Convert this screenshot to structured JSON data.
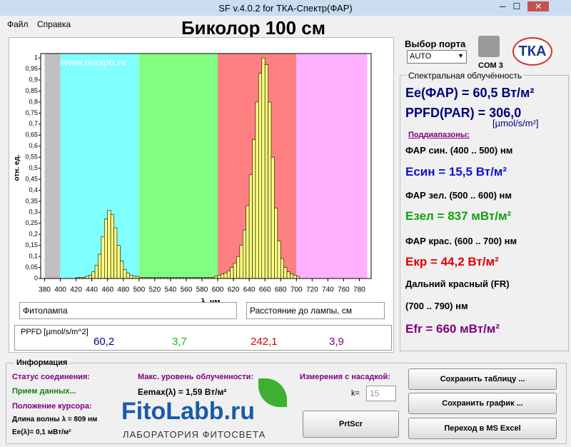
{
  "window": {
    "title": "SF v.4.0.2 for ТКА-Спектр(ФАР)",
    "menu": [
      "Файл",
      "Справка"
    ]
  },
  "header": "Биколор 100 см",
  "chart_data": {
    "type": "histogram",
    "watermark": "www.tkaspb.ru",
    "xlabel": "λ, нм",
    "ylabel": "отн. ед.",
    "bins": [
      420,
      424,
      428,
      432,
      436,
      440,
      444,
      448,
      452,
      456,
      460,
      464,
      468,
      472,
      476,
      480,
      484,
      488,
      492,
      496,
      500,
      504,
      508,
      512,
      516,
      520,
      524,
      528,
      532,
      536,
      540,
      544,
      548,
      552,
      556,
      560,
      564,
      568,
      572,
      576,
      580,
      584,
      588,
      592,
      596,
      600,
      604,
      608,
      612,
      616,
      620,
      624,
      628,
      632,
      636,
      640,
      644,
      648,
      652,
      656,
      660,
      664,
      668,
      672,
      676,
      680,
      684,
      688,
      692,
      696,
      700,
      704
    ],
    "values": [
      0.005,
      0.005,
      0.005,
      0.01,
      0.015,
      0.03,
      0.06,
      0.11,
      0.19,
      0.27,
      0.31,
      0.29,
      0.23,
      0.15,
      0.08,
      0.04,
      0.025,
      0.015,
      0.01,
      0.01,
      0.005,
      0.005,
      0.005,
      0.005,
      0.005,
      0.005,
      0.005,
      0.005,
      0.005,
      0.005,
      0.005,
      0.005,
      0.005,
      0.005,
      0.005,
      0.005,
      0.005,
      0.005,
      0.005,
      0.005,
      0.005,
      0.005,
      0.005,
      0.005,
      0.01,
      0.015,
      0.02,
      0.025,
      0.035,
      0.05,
      0.07,
      0.1,
      0.15,
      0.22,
      0.33,
      0.47,
      0.63,
      0.8,
      0.93,
      1.0,
      0.97,
      0.8,
      0.55,
      0.32,
      0.17,
      0.09,
      0.05,
      0.03,
      0.02,
      0.015,
      0.01
    ],
    "color": "#ffff80",
    "edgecolor": "#000000",
    "bands": [
      {
        "from": 380,
        "to": 400,
        "color": "#c0c0c0"
      },
      {
        "from": 400,
        "to": 500,
        "color": "#80ffff"
      },
      {
        "from": 500,
        "to": 600,
        "color": "#80ff80"
      },
      {
        "from": 600,
        "to": 700,
        "color": "#ff8080"
      },
      {
        "from": 700,
        "to": 790,
        "color": "#ffb0ff"
      }
    ],
    "xlim": [
      375,
      795
    ],
    "ylim": [
      0,
      1.02
    ],
    "xticks": [
      380,
      400,
      420,
      440,
      460,
      480,
      500,
      520,
      540,
      560,
      580,
      600,
      620,
      640,
      660,
      680,
      700,
      720,
      740,
      760,
      780
    ],
    "yticks": [
      0,
      {
        "value": 0.05,
        "label": "0,05"
      },
      {
        "value": 0.1,
        "label": "0,1"
      },
      {
        "value": 0.15,
        "label": "0,15"
      },
      {
        "value": 0.2,
        "label": "0,2"
      },
      {
        "value": 0.25,
        "label": "0,25"
      },
      {
        "value": 0.3,
        "label": "0,3"
      },
      {
        "value": 0.35,
        "label": "0,35"
      },
      {
        "value": 0.4,
        "label": "0,4"
      },
      {
        "value": 0.45,
        "label": "0,45"
      },
      {
        "value": 0.5,
        "label": "0,5"
      },
      {
        "value": 0.55,
        "label": "0,55"
      },
      {
        "value": 0.6,
        "label": "0,6"
      },
      {
        "value": 0.65,
        "label": "0,65"
      },
      {
        "value": 0.7,
        "label": "0,7"
      },
      {
        "value": 0.75,
        "label": "0,75"
      },
      {
        "value": 0.8,
        "label": "0,8"
      },
      {
        "value": 0.85,
        "label": "0,85"
      },
      {
        "value": 0.9,
        "label": "0,9"
      },
      {
        "value": 0.95,
        "label": "0,95"
      },
      1
    ]
  },
  "inputs": {
    "lamp": "Фитолампа",
    "distance": "Расстояние до лампы,  см"
  },
  "ppfd": {
    "label": "PPFD [µmol/s/m^2]",
    "values": [
      "60,2",
      "3,7",
      "242,1",
      "3,9"
    ]
  },
  "port": {
    "label": "Выбор порта",
    "select": "AUTO",
    "com": "COM 3",
    "logo": "ТКА"
  },
  "irradiance": {
    "title": "Спектральная облучённость",
    "ee": "Ee(ФАР) = 60,5 Вт/м²",
    "ppfd": "PPFD(PAR) = 306,0",
    "ppfd_unit": "[µmol/s/m²]",
    "subranges": "Поддиапазоны:",
    "blue_label": "ФАР син. (400 .. 500) нм",
    "blue": "Есин = 15,5 Вт/м²",
    "green_label": "ФАР зел. (500 .. 600) нм",
    "green": "Езел = 837 мВт/м²",
    "red_label": "ФАР крас. (600 .. 700) нм",
    "red": "Екр = 44,2 Вт/м²",
    "fr_label": "Дальний красный (FR)",
    "fr_range": "(700 .. 790) нм",
    "fr": "Efr = 660 мВт/м²"
  },
  "info": {
    "title": "Информация",
    "status_label": "Статус соединения:",
    "status": "Прием данных...",
    "cursor_label": "Положение курсора:",
    "wavelength": "Длина волны  λ  = 809 нм",
    "ee_cursor": "Ee(λ)= 0,1 мВт/м²",
    "max_label": "Макс. уровень облученности:",
    "max": "Eemax(λ) = 1,59 Вт/м²",
    "nozzle_label": "Измерения с насадкой:",
    "k_label": "k=",
    "k": "15"
  },
  "logo": {
    "name": "FitoLabb.ru",
    "tagline": "ЛАБОРАТОРИЯ ФИТОСВЕТА"
  },
  "buttons": {
    "prtscr": "PrtScr",
    "save_table": "Сохранить таблицу ...",
    "save_chart": "Сохранить график ...",
    "excel": "Переход в MS Excel"
  }
}
